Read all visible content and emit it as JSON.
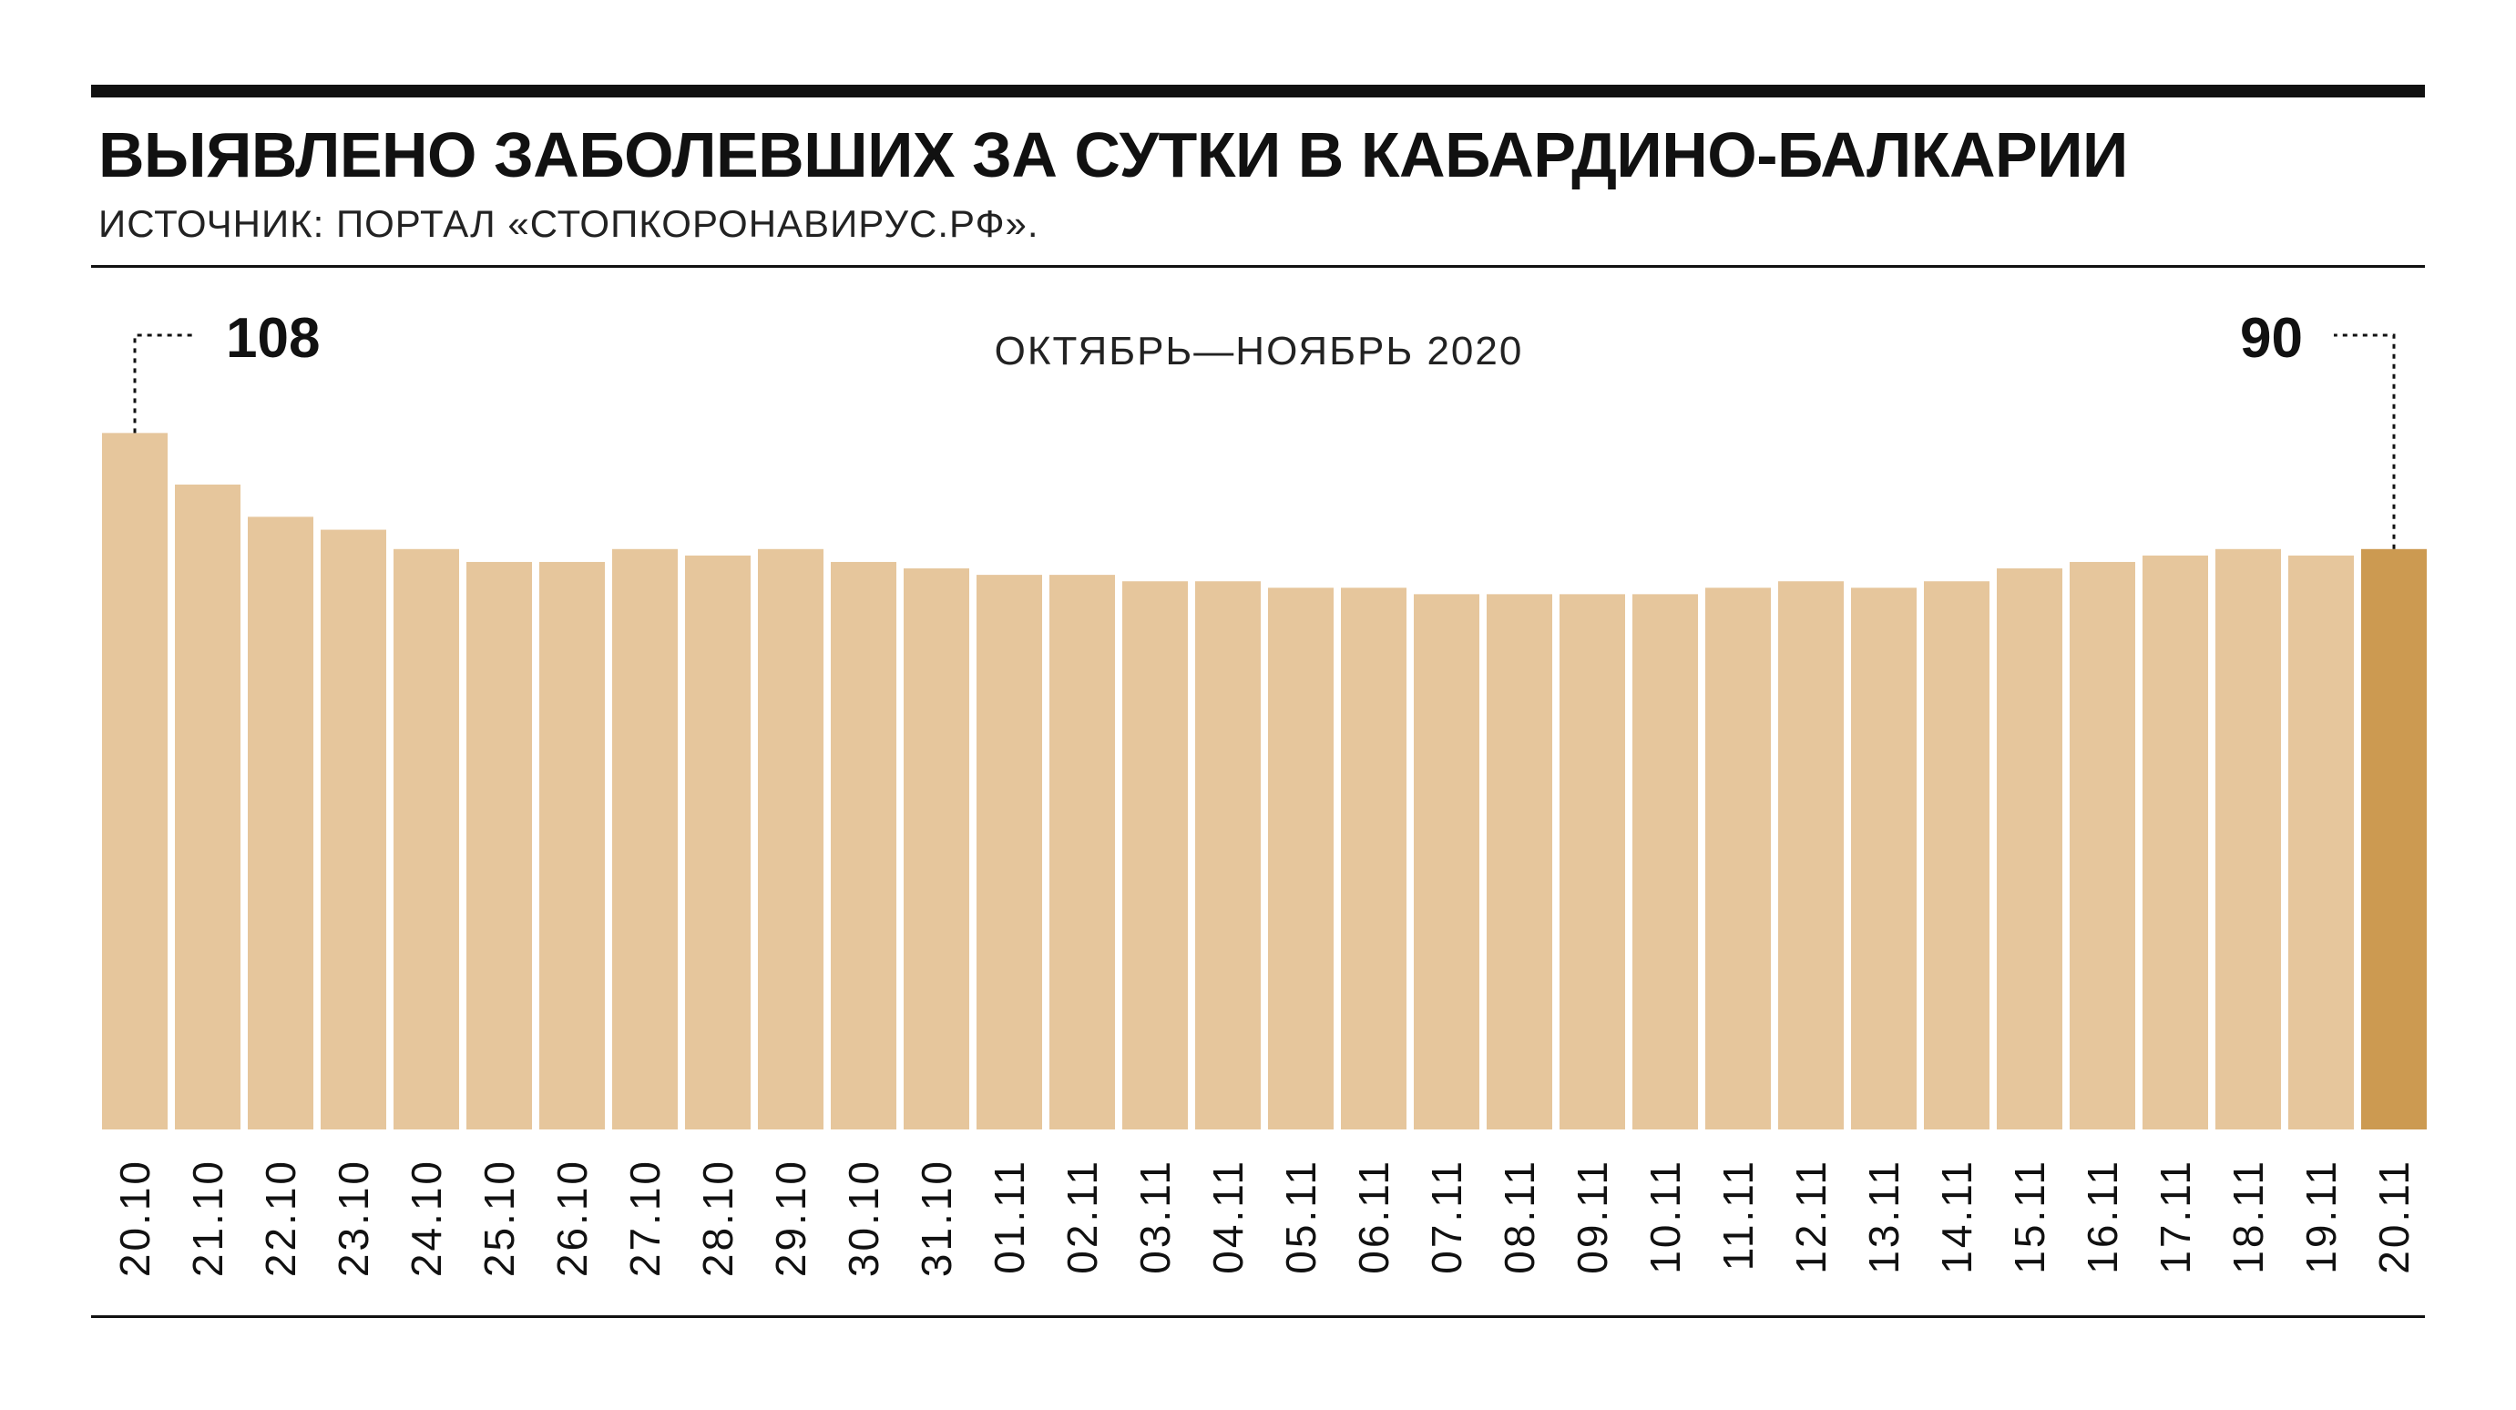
{
  "title": {
    "regular": "ВЫЯВЛЕНО ЗАБОЛЕВШИХ ЗА СУТКИ В ",
    "bold": "КАБАРДИНО-БАЛКАРИИ"
  },
  "source": "ИСТОЧНИК: ПОРТАЛ «СТОПКОРОНАВИРУС.РФ».",
  "chart_data": {
    "type": "bar",
    "subtitle": "ОКТЯБРЬ—НОЯБРЬ 2020",
    "categories": [
      "20.10",
      "21.10",
      "22.10",
      "23.10",
      "24.10",
      "25.10",
      "26.10",
      "27.10",
      "28.10",
      "29.10",
      "30.10",
      "31.10",
      "01.11",
      "02.11",
      "03.11",
      "04.11",
      "05.11",
      "06.11",
      "07.11",
      "08.11",
      "09.11",
      "10.11",
      "11.11",
      "12.11",
      "13.11",
      "14.11",
      "15.11",
      "16.11",
      "17.11",
      "18.11",
      "19.11",
      "20.11"
    ],
    "values": [
      108,
      100,
      95,
      93,
      90,
      88,
      88,
      90,
      89,
      90,
      88,
      87,
      86,
      86,
      85,
      85,
      84,
      84,
      83,
      83,
      83,
      83,
      84,
      85,
      84,
      85,
      87,
      88,
      89,
      90,
      89,
      90
    ],
    "annotations": [
      {
        "index": 0,
        "text": "108"
      },
      {
        "index": 31,
        "text": "90"
      }
    ],
    "colors": {
      "bar": "#e6c69c",
      "highlight": "#cc9a51",
      "highlight_index": 31
    },
    "grid": false,
    "xlabel": "",
    "ylabel": ""
  }
}
